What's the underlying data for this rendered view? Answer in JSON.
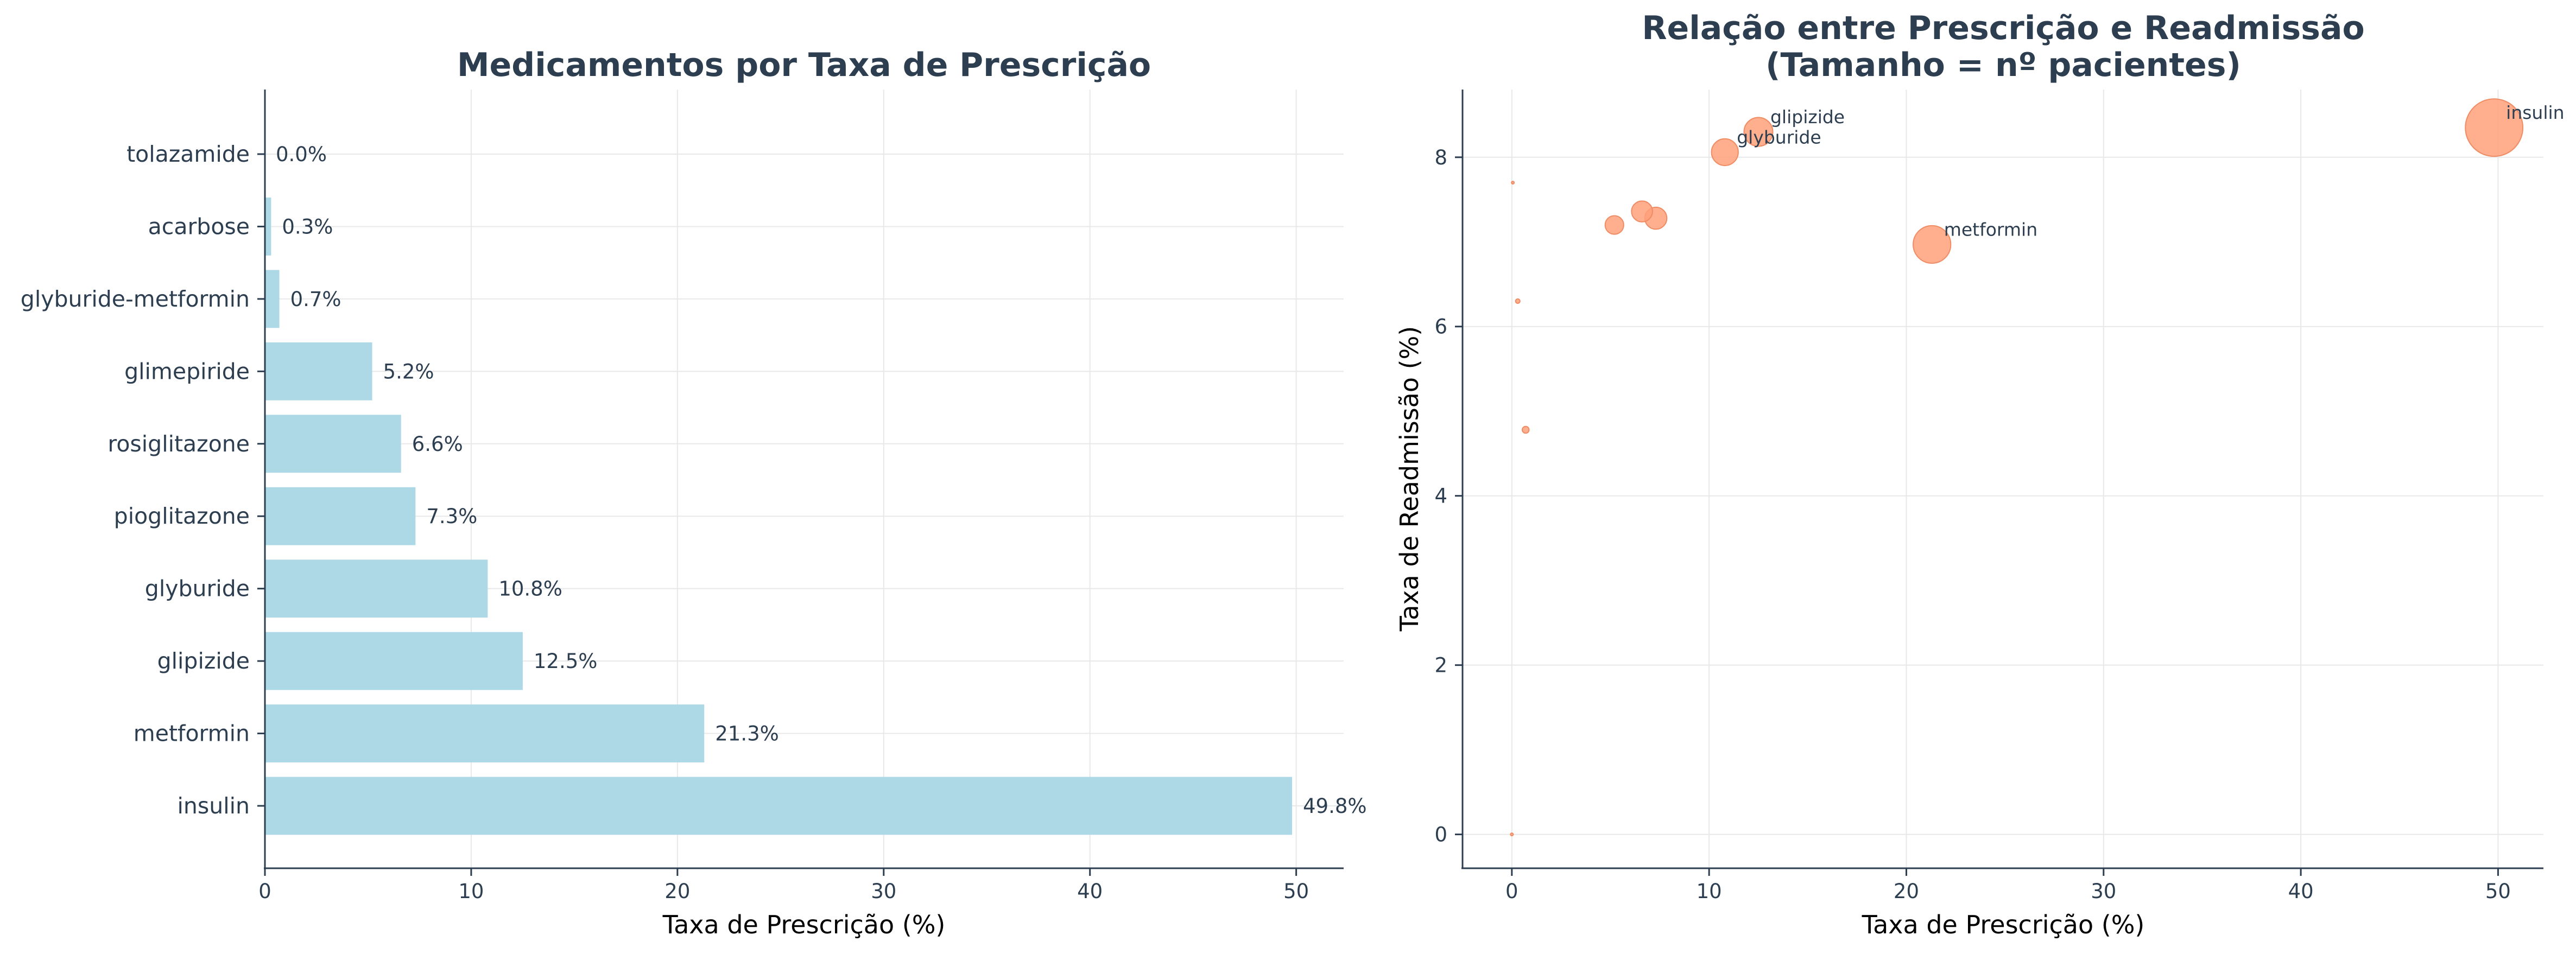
{
  "colors": {
    "bar": "#add8e6",
    "scatter": "#ffa07a",
    "text": "#2c3e50"
  },
  "chart_data": [
    {
      "type": "bar",
      "orientation": "horizontal",
      "title": "Medicamentos por Taxa de Prescrição",
      "xlabel": "Taxa de Prescrição (%)",
      "ylabel": "",
      "xlim": [
        0,
        52.3
      ],
      "xticks": [
        "0",
        "10",
        "20",
        "30",
        "40",
        "50"
      ],
      "grid": true,
      "categories": [
        "tolazamide",
        "acarbose",
        "glyburide-metformin",
        "glimepiride",
        "rosiglitazone",
        "pioglitazone",
        "glyburide",
        "glipizide",
        "metformin",
        "insulin"
      ],
      "values": [
        0.0,
        0.3,
        0.7,
        5.2,
        6.6,
        7.3,
        10.8,
        12.5,
        21.3,
        49.8
      ],
      "data_labels": [
        "0.0%",
        "0.3%",
        "0.7%",
        "5.2%",
        "6.6%",
        "7.3%",
        "10.8%",
        "12.5%",
        "21.3%",
        "49.8%"
      ]
    },
    {
      "type": "scatter",
      "title": "Relação entre Prescrição e Readmissão",
      "subtitle": "(Tamanho = nº pacientes)",
      "xlabel": "Taxa de Prescrição (%)",
      "ylabel": "Taxa de Readmissão (%)",
      "xlim": [
        -2.5,
        52.3
      ],
      "ylim": [
        -0.4,
        8.8
      ],
      "xticks": [
        "0",
        "10",
        "20",
        "30",
        "40",
        "50"
      ],
      "yticks": [
        "0",
        "2",
        "4",
        "6",
        "8"
      ],
      "grid": true,
      "points": [
        {
          "x": 49.8,
          "y": 8.35,
          "size_pct": 49.8,
          "label": "insulin"
        },
        {
          "x": 21.3,
          "y": 6.97,
          "size_pct": 21.3,
          "label": "metformin"
        },
        {
          "x": 12.5,
          "y": 8.3,
          "size_pct": 12.5,
          "label": "glipizide"
        },
        {
          "x": 10.8,
          "y": 8.06,
          "size_pct": 10.8,
          "label": "glyburide"
        },
        {
          "x": 7.3,
          "y": 7.28,
          "size_pct": 7.3,
          "label": ""
        },
        {
          "x": 6.6,
          "y": 7.36,
          "size_pct": 6.6,
          "label": ""
        },
        {
          "x": 5.2,
          "y": 7.2,
          "size_pct": 5.2,
          "label": ""
        },
        {
          "x": 0.7,
          "y": 4.78,
          "size_pct": 0.7,
          "label": ""
        },
        {
          "x": 0.3,
          "y": 6.3,
          "size_pct": 0.3,
          "label": ""
        },
        {
          "x": 0.05,
          "y": 7.7,
          "size_pct": 0.05,
          "label": ""
        },
        {
          "x": 0.0,
          "y": 0.0,
          "size_pct": 0.02,
          "label": ""
        }
      ]
    }
  ]
}
